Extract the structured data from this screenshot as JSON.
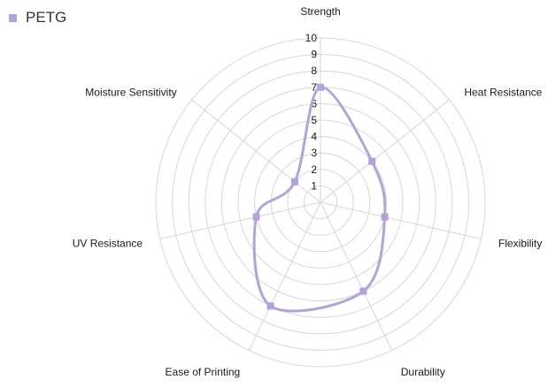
{
  "chart_data": {
    "type": "radar",
    "categories": [
      "Strength",
      "Heat Resistance",
      "Flexibility",
      "Durability",
      "Ease of Printing",
      "UV Resistance",
      "Moisture Sensitivity"
    ],
    "series": [
      {
        "name": "PETG",
        "values": [
          7,
          4,
          4,
          6,
          7,
          4,
          2
        ]
      }
    ],
    "rlim": [
      0,
      10
    ],
    "ticks": [
      "1",
      "2",
      "3",
      "4",
      "5",
      "6",
      "7",
      "8",
      "9",
      "10"
    ],
    "grid": true,
    "legend_position": "top-left",
    "colors": {
      "series": "#b3a3d9",
      "grid": "#d6d6d6"
    }
  }
}
